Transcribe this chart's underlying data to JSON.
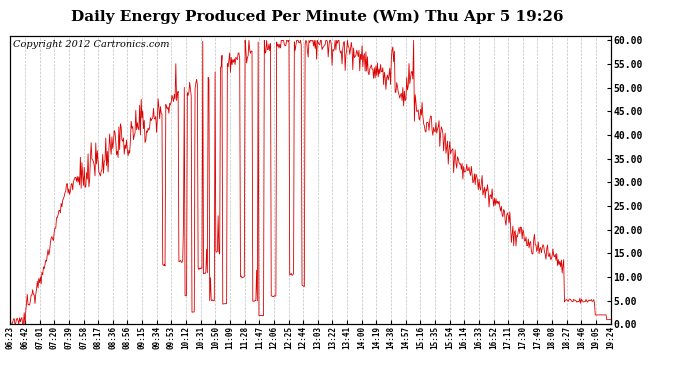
{
  "title": "Daily Energy Produced Per Minute (Wm) Thu Apr 5 19:26",
  "copyright": "Copyright 2012 Cartronics.com",
  "line_color": "#dd0000",
  "background_color": "#ffffff",
  "grid_color": "#bbbbbb",
  "ylim": [
    0,
    61
  ],
  "yticks": [
    0.0,
    5.0,
    10.0,
    15.0,
    20.0,
    25.0,
    30.0,
    35.0,
    40.0,
    45.0,
    50.0,
    55.0,
    60.0
  ],
  "xtick_labels": [
    "06:23",
    "06:42",
    "07:01",
    "07:20",
    "07:39",
    "07:58",
    "08:17",
    "08:36",
    "08:56",
    "09:15",
    "09:34",
    "09:53",
    "10:12",
    "10:31",
    "10:50",
    "11:09",
    "11:28",
    "11:47",
    "12:06",
    "12:25",
    "12:44",
    "13:03",
    "13:22",
    "13:41",
    "14:00",
    "14:19",
    "14:38",
    "14:57",
    "15:16",
    "15:35",
    "15:54",
    "16:14",
    "16:33",
    "16:52",
    "17:11",
    "17:30",
    "17:49",
    "18:08",
    "18:27",
    "18:46",
    "19:05",
    "19:24"
  ],
  "title_fontsize": 11,
  "copyright_fontsize": 7
}
